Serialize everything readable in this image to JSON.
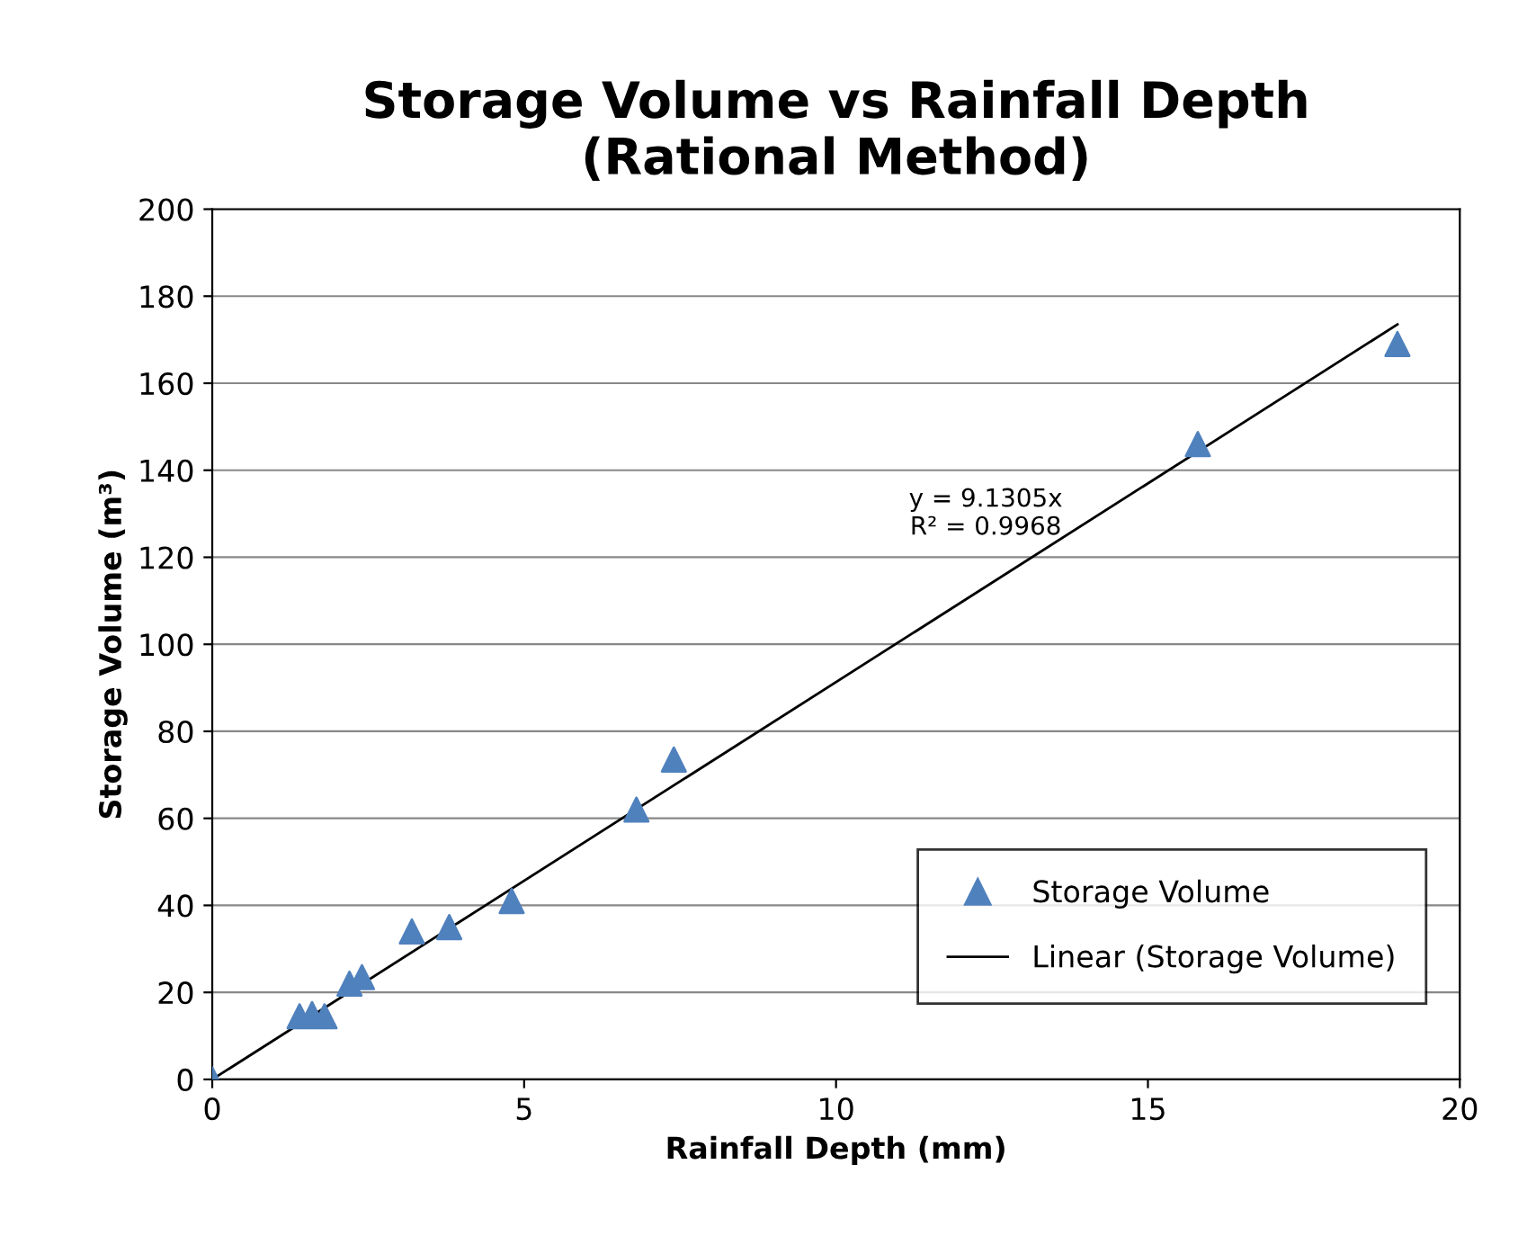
{
  "chart_data": {
    "type": "scatter",
    "title": "Storage Volume vs Rainfall Depth\n(Rational Method)",
    "xlabel": "Rainfall Depth (mm)",
    "ylabel": "Storage Volume (m³)",
    "series": [
      {
        "name": "Storage Volume",
        "color": "#4f81bd",
        "marker": "triangle",
        "x": [
          0,
          1.4,
          1.6,
          1.8,
          2.2,
          2.4,
          3.2,
          3.8,
          4.8,
          6.8,
          7.4,
          15.8,
          19.0
        ],
        "values": [
          0,
          14.5,
          15,
          14.5,
          22,
          23.5,
          34,
          35,
          41,
          62,
          73.5,
          146,
          169
        ]
      },
      {
        "name": "Linear (Storage Volume)",
        "type": "line",
        "color": "#000000",
        "marker": "none",
        "line_style": "solid",
        "x": [
          0,
          19.0
        ],
        "values": [
          0,
          173.5
        ]
      }
    ],
    "annotations": [
      "y = 9.1305x\nR² = 0.9968"
    ],
    "xlim": [
      0,
      20
    ],
    "xticks": [
      0,
      5,
      10,
      15,
      20
    ],
    "ylim": [
      0,
      200
    ],
    "yticks": [
      0,
      20,
      40,
      60,
      80,
      100,
      120,
      140,
      160,
      180,
      200
    ],
    "grid": "y",
    "legend": "bottom right"
  }
}
